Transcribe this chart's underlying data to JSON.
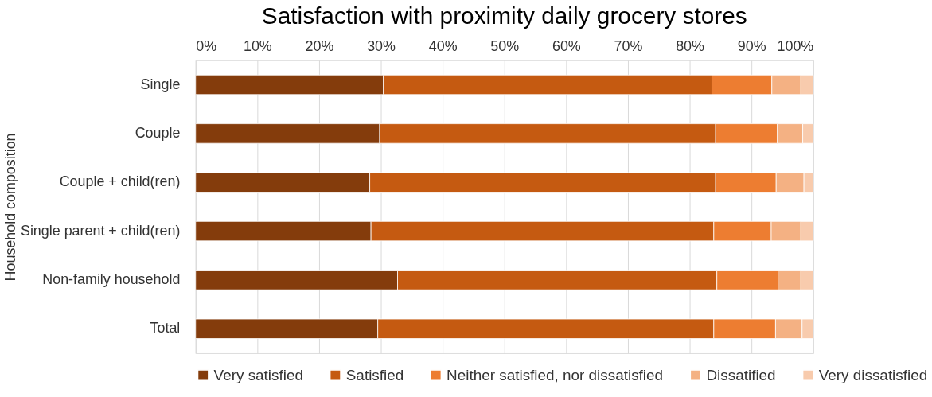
{
  "chart_data": {
    "type": "bar",
    "orientation": "horizontal",
    "stacked": true,
    "title": "Satisfaction with proximity daily grocery stores",
    "ylabel": "Household composition",
    "categories": [
      "Single",
      "Couple",
      "Couple + child(ren)",
      "Single parent + child(ren)",
      "Non-family household",
      "Total"
    ],
    "series": [
      {
        "name": "Very satisfied",
        "color": "#843c0c",
        "values": [
          30.4,
          29.8,
          28.2,
          28.4,
          32.7,
          29.5
        ]
      },
      {
        "name": "Satisfied",
        "color": "#c55a11",
        "values": [
          53.2,
          54.4,
          56.0,
          55.5,
          51.7,
          54.4
        ]
      },
      {
        "name": "Neither satisfied, nor dissatisfied",
        "color": "#ed7d31",
        "values": [
          9.7,
          10.0,
          9.8,
          9.3,
          9.9,
          10.0
        ]
      },
      {
        "name": "Dissatified",
        "color": "#f4b183",
        "values": [
          4.7,
          4.1,
          4.5,
          4.8,
          3.7,
          4.3
        ]
      },
      {
        "name": "Very dissatisfied",
        "color": "#f8cbad",
        "values": [
          2.0,
          1.7,
          1.5,
          2.0,
          2.0,
          1.8
        ]
      }
    ],
    "xlim": [
      0,
      100
    ],
    "xticks": [
      {
        "value": 0,
        "label": "0%"
      },
      {
        "value": 10,
        "label": "10%"
      },
      {
        "value": 20,
        "label": "20%"
      },
      {
        "value": 30,
        "label": "30%"
      },
      {
        "value": 40,
        "label": "40%"
      },
      {
        "value": 50,
        "label": "50%"
      },
      {
        "value": 60,
        "label": "60%"
      },
      {
        "value": 70,
        "label": "70%"
      },
      {
        "value": 80,
        "label": "80%"
      },
      {
        "value": 90,
        "label": "90%"
      },
      {
        "value": 100,
        "label": "100%"
      }
    ],
    "grid": "x",
    "legend": "bottom"
  }
}
